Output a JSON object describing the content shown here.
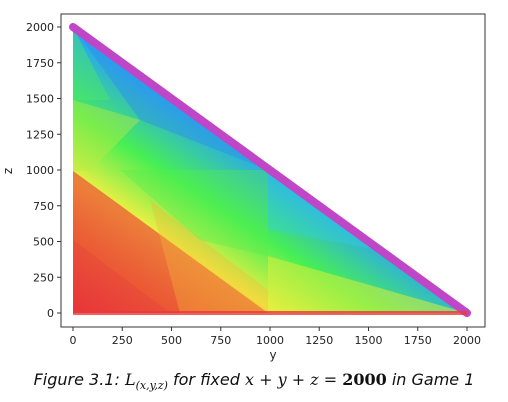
{
  "chart_data": {
    "type": "heatmap",
    "title": "",
    "xlabel": "y",
    "ylabel": "z",
    "xlim": [
      -40,
      2040
    ],
    "ylim": [
      -40,
      2040
    ],
    "xticks": [
      0,
      250,
      500,
      750,
      1000,
      1250,
      1500,
      1750,
      2000
    ],
    "yticks": [
      0,
      250,
      500,
      750,
      1000,
      1250,
      1500,
      1750,
      2000
    ],
    "domain": "triangle y >= 0, z >= 0, y + z <= 2000",
    "colormap": [
      "#e8303a",
      "#f07a30",
      "#f2f040",
      "#46f052",
      "#1f96f0",
      "#c846c8"
    ],
    "grid": false,
    "legend": "none",
    "boundary_color": "#c046c8"
  },
  "caption": {
    "prefix": "Figure 3.1: ",
    "symbol": "L",
    "subscript": "(x,y,z)",
    "middle": " for fixed ",
    "expression": "x + y + z = ",
    "total": "2000",
    "suffix": " in Game 1"
  }
}
